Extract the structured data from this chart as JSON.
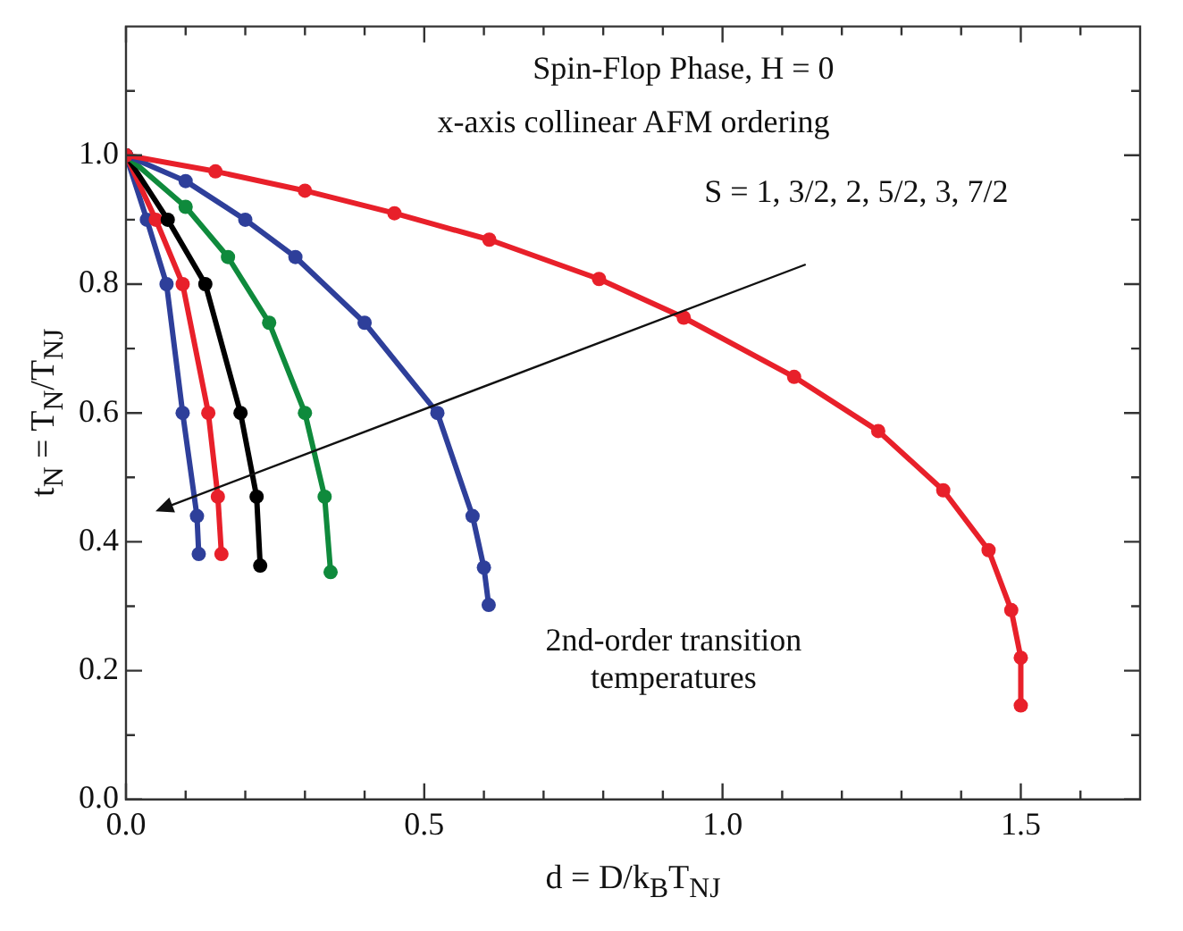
{
  "chart_data": {
    "type": "line",
    "xlabel": "d = D/k$_{B}$T$_{NJ}$",
    "ylabel": "t$_{N}$ = T$_{N}$/T$_{NJ}$",
    "annotations": [
      "Spin-Flop Phase,  H = 0",
      "x-axis collinear AFM ordering",
      "S = 1, 3/2, 2, 5/2, 3, 7/2",
      "2nd-order transition temperatures"
    ],
    "xlim": [
      0,
      1.7
    ],
    "ylim": [
      0,
      1.2
    ],
    "xticks": [
      {
        "value": 0,
        "label": "0.0"
      },
      {
        "value": 0.1,
        "label": null
      },
      {
        "value": 0.2,
        "label": null
      },
      {
        "value": 0.3,
        "label": null
      },
      {
        "value": 0.4,
        "label": null
      },
      {
        "value": 0.5,
        "label": "0.5"
      },
      {
        "value": 0.6,
        "label": null
      },
      {
        "value": 0.7,
        "label": null
      },
      {
        "value": 0.8,
        "label": null
      },
      {
        "value": 0.9,
        "label": null
      },
      {
        "value": 1,
        "label": "1.0"
      },
      {
        "value": 1.1,
        "label": null
      },
      {
        "value": 1.2,
        "label": null
      },
      {
        "value": 1.3,
        "label": null
      },
      {
        "value": 1.4,
        "label": null
      },
      {
        "value": 1.5,
        "label": "1.5"
      },
      {
        "value": 1.6,
        "label": null
      }
    ],
    "yticks": [
      {
        "value": 0,
        "label": "0.0"
      },
      {
        "value": 0.1,
        "label": null
      },
      {
        "value": 0.2,
        "label": "0.2"
      },
      {
        "value": 0.3,
        "label": null
      },
      {
        "value": 0.4,
        "label": "0.4"
      },
      {
        "value": 0.5,
        "label": null
      },
      {
        "value": 0.6,
        "label": "0.6"
      },
      {
        "value": 0.7,
        "label": null
      },
      {
        "value": 0.8,
        "label": "0.8"
      },
      {
        "value": 0.9,
        "label": null
      },
      {
        "value": 1,
        "label": "1.0"
      },
      {
        "value": 1.1,
        "label": null
      }
    ],
    "grid": false,
    "legend": false,
    "marker": "circle",
    "series": [
      {
        "color": "#e8202a",
        "x": [
          0,
          0.15,
          0.3,
          0.45,
          0.609,
          0.793,
          0.935,
          1.12,
          1.261,
          1.37,
          1.446,
          1.484,
          1.5,
          1.5
        ],
        "values": [
          1,
          0.975,
          0.945,
          0.91,
          0.869,
          0.808,
          0.748,
          0.656,
          0.572,
          0.48,
          0.387,
          0.294,
          0.22,
          0.146
        ]
      },
      {
        "color": "#2e3f9a",
        "x": [
          0,
          0.1,
          0.2,
          0.284,
          0.4,
          0.522,
          0.581,
          0.6,
          0.608
        ],
        "values": [
          1,
          0.96,
          0.9,
          0.842,
          0.74,
          0.6,
          0.44,
          0.36,
          0.302
        ]
      },
      {
        "color": "#0f8a3c",
        "x": [
          0,
          0.1,
          0.171,
          0.24,
          0.3,
          0.333,
          0.343
        ],
        "values": [
          1,
          0.92,
          0.842,
          0.74,
          0.6,
          0.47,
          0.353
        ]
      },
      {
        "color": "#000000",
        "x": [
          0,
          0.07,
          0.133,
          0.192,
          0.219,
          0.225
        ],
        "values": [
          1,
          0.9,
          0.8,
          0.6,
          0.47,
          0.363
        ]
      },
      {
        "color": "#e8202a",
        "x": [
          0,
          0.05,
          0.095,
          0.138,
          0.154,
          0.16
        ],
        "values": [
          1,
          0.9,
          0.8,
          0.6,
          0.47,
          0.381
        ]
      },
      {
        "color": "#2e3f9a",
        "x": [
          0,
          0.035,
          0.068,
          0.095,
          0.119,
          0.122
        ],
        "values": [
          1,
          0.9,
          0.8,
          0.6,
          0.44,
          0.381
        ]
      }
    ]
  }
}
